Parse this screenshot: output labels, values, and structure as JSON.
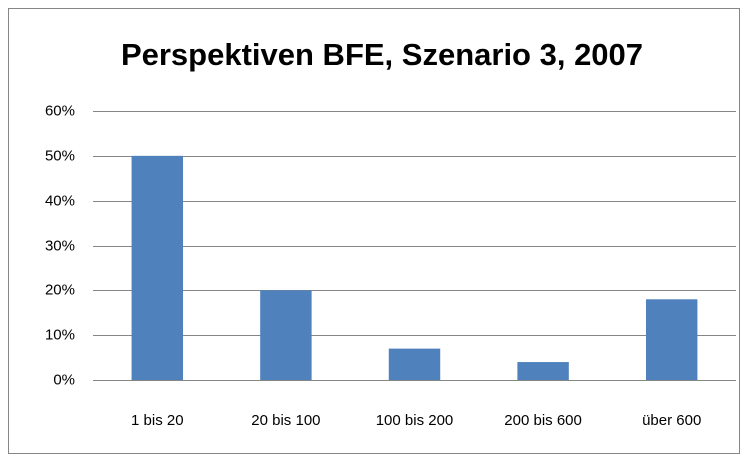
{
  "chart_data": {
    "type": "bar",
    "title": "Perspektiven BFE, Szenario 3, 2007",
    "categories": [
      "1 bis 20",
      "20 bis 100",
      "100 bis 200",
      "200 bis 600",
      "über 600"
    ],
    "values": [
      50,
      20,
      7,
      4,
      18
    ],
    "color": "#4f81bd",
    "ylim": [
      0,
      60
    ],
    "yticks": [
      {
        "value": 0,
        "label": "0%"
      },
      {
        "value": 10,
        "label": "10%"
      },
      {
        "value": 20,
        "label": "20%"
      },
      {
        "value": 30,
        "label": "30%"
      },
      {
        "value": 40,
        "label": "40%"
      },
      {
        "value": 50,
        "label": "50%"
      },
      {
        "value": 60,
        "label": "60%"
      }
    ],
    "grid": true
  }
}
